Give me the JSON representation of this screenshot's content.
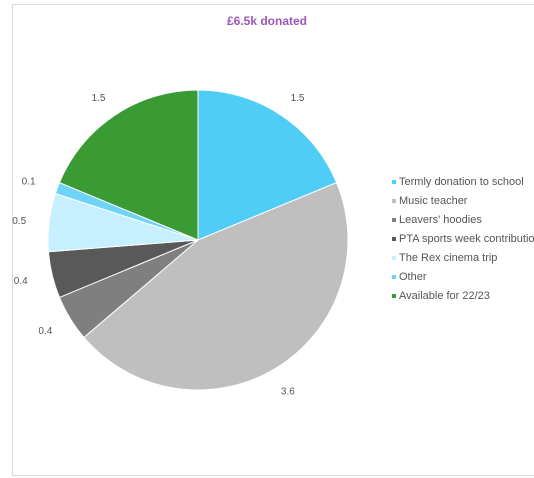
{
  "chart_data": {
    "type": "pie",
    "title": "£6.5k donated",
    "legend_position": "right",
    "series": [
      {
        "name": "",
        "slices": [
          {
            "label": "Termly donation to school",
            "value": 1.5,
            "value_label": "1.5",
            "color": "#4fcdf7"
          },
          {
            "label": "Music teacher",
            "value": 3.6,
            "value_label": "3.6",
            "color": "#bfbfbf"
          },
          {
            "label": "Leavers' hoodies",
            "value": 0.4,
            "value_label": "0.4",
            "color": "#7f7f7f"
          },
          {
            "label": "PTA sports week contribution",
            "value": 0.4,
            "value_label": "0.4",
            "color": "#595959"
          },
          {
            "label": "The Rex cinema trip",
            "value": 0.5,
            "value_label": "0.5",
            "color": "#c6efff"
          },
          {
            "label": "Other",
            "value": 0.1,
            "value_label": "0.1",
            "color": "#6ed3f7"
          },
          {
            "label": "Available for 22/23",
            "value": 1.5,
            "value_label": "1.5",
            "color": "#3a9a33"
          }
        ]
      }
    ]
  }
}
